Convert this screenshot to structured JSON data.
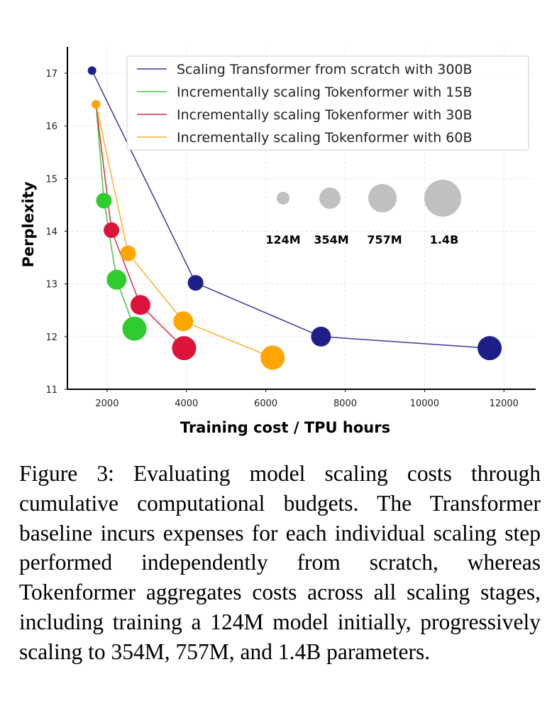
{
  "chart_data": {
    "type": "scatter",
    "xlabel": "Training cost / TPU hours",
    "ylabel": "Perplexity",
    "xlim": [
      1000,
      12800
    ],
    "ylim": [
      11,
      17.5
    ],
    "xticks": [
      2000,
      4000,
      6000,
      8000,
      10000,
      12000
    ],
    "yticks": [
      11,
      12,
      13,
      14,
      15,
      16,
      17
    ],
    "xtick_labels": [
      "2000",
      "4000",
      "6000",
      "8000",
      "10000",
      "12000"
    ],
    "ytick_labels": [
      "11",
      "12",
      "13",
      "14",
      "15",
      "16",
      "17"
    ],
    "grid": true,
    "legend_position": "top-right",
    "series": [
      {
        "name": "Scaling Transformer from scratch with 300B",
        "color": "#1f1f8a",
        "line_color": "#3a3a9a",
        "points": [
          {
            "x": 1620,
            "y": 17.05,
            "size": "124M"
          },
          {
            "x": 4230,
            "y": 13.02,
            "size": "354M"
          },
          {
            "x": 7390,
            "y": 12.0,
            "size": "757M"
          },
          {
            "x": 11640,
            "y": 11.78,
            "size": "1.4B"
          }
        ]
      },
      {
        "name": "Incrementally scaling Tokenformer with 15B",
        "color": "#2ecc2e",
        "line_color": "#3ec83e",
        "points": [
          {
            "x": 1720,
            "y": 16.41,
            "size": "124M"
          },
          {
            "x": 1920,
            "y": 14.58,
            "size": "354M"
          },
          {
            "x": 2240,
            "y": 13.08,
            "size": "757M"
          },
          {
            "x": 2690,
            "y": 12.15,
            "size": "1.4B"
          }
        ]
      },
      {
        "name": "Incrementally scaling Tokenformer with 30B",
        "color": "#dc143c",
        "line_color": "#dc2a48",
        "points": [
          {
            "x": 1720,
            "y": 16.41,
            "size": "124M"
          },
          {
            "x": 2110,
            "y": 14.02,
            "size": "354M"
          },
          {
            "x": 2840,
            "y": 12.6,
            "size": "757M"
          },
          {
            "x": 3940,
            "y": 11.78,
            "size": "1.4B"
          }
        ]
      },
      {
        "name": "Incrementally scaling Tokenformer with 60B",
        "color": "#ffa500",
        "line_color": "#ffae22",
        "points": [
          {
            "x": 1720,
            "y": 16.41,
            "size": "124M"
          },
          {
            "x": 2530,
            "y": 13.58,
            "size": "354M"
          },
          {
            "x": 3920,
            "y": 12.29,
            "size": "757M"
          },
          {
            "x": 6170,
            "y": 11.6,
            "size": "1.4B"
          }
        ]
      }
    ],
    "size_legend": [
      {
        "label": "124M",
        "color": "#c0c0c0"
      },
      {
        "label": "354M",
        "color": "#c0c0c0"
      },
      {
        "label": "757M",
        "color": "#c0c0c0"
      },
      {
        "label": "1.4B",
        "color": "#c0c0c0"
      }
    ]
  },
  "caption": "Figure 3: Evaluating model scaling costs through cumulative computational budgets. The Trans­former baseline incurs expenses for each individ­ual scaling step performed independently from scratch, whereas Tokenformer aggregates costs across all scaling stages, including training a 124M model initially, progressively scaling to 354M, 757M, and 1.4B parameters."
}
